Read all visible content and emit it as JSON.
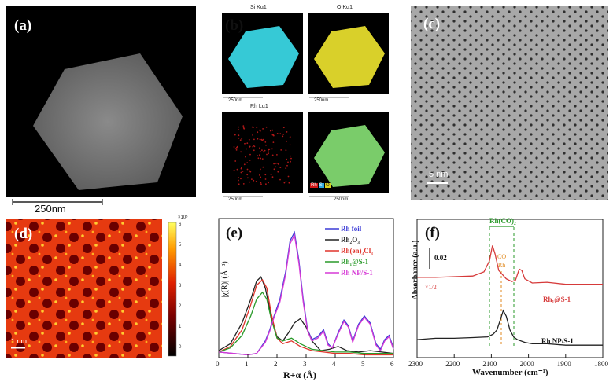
{
  "panels": {
    "a": {
      "label": "(a)",
      "scalebar": "250nm"
    },
    "b": {
      "label": "(b)",
      "maps": [
        {
          "title": "Si Kα1",
          "scale": "250nm",
          "color": "#36c9d6"
        },
        {
          "title": "O Kα1",
          "scale": "250nm",
          "color": "#d9d02a"
        },
        {
          "title": "Rh Lα1",
          "scale": "250nm",
          "color": "#b01818"
        },
        {
          "title": "",
          "scale": "250nm",
          "color": "#7acc6a"
        }
      ],
      "legend": [
        "Rh",
        "Si",
        "O"
      ],
      "legend_colors": [
        "#d01818",
        "#2ea8e0",
        "#d8d020"
      ]
    },
    "c": {
      "label": "(c)",
      "scalebar": "5 nm"
    },
    "d": {
      "label": "(d)",
      "scalebar": "1 nm",
      "colorbar_exp": "×10⁵",
      "colorbar_ticks": [
        "6",
        "5",
        "4",
        "3",
        "2",
        "1",
        "0"
      ]
    },
    "e": {
      "label": "(e)"
    },
    "f": {
      "label": "(f)"
    }
  },
  "chart_data": [
    {
      "type": "line",
      "panel": "e",
      "xlabel": "R+α (Å)",
      "ylabel": "|χ(R)| (Å⁻³)",
      "xlim": [
        0,
        6
      ],
      "ylim": [
        0,
        1
      ],
      "xticks": [
        "0",
        "1",
        "2",
        "3",
        "4",
        "5",
        "6"
      ],
      "legend": [
        {
          "name": "Rh foil",
          "color": "#3b3bd6"
        },
        {
          "name": "Rh₂O₃",
          "color": "#222222"
        },
        {
          "name": "Rh(en)₃Cl₃",
          "color": "#e0342c"
        },
        {
          "name": "Rh₁@S-1",
          "color": "#2a9a2a"
        },
        {
          "name": "Rh NP/S-1",
          "color": "#d63ad6"
        }
      ],
      "series": [
        {
          "name": "Rh foil",
          "x": [
            0,
            0.5,
            1.0,
            1.3,
            1.6,
            1.75,
            1.9,
            2.1,
            2.3,
            2.45,
            2.6,
            2.75,
            2.9,
            3.05,
            3.2,
            3.4,
            3.6,
            3.75,
            3.9,
            4.1,
            4.3,
            4.45,
            4.6,
            4.8,
            5.0,
            5.2,
            5.4,
            5.55,
            5.7,
            5.85,
            6.0
          ],
          "y": [
            0.04,
            0.03,
            0.02,
            0.03,
            0.12,
            0.2,
            0.3,
            0.42,
            0.62,
            0.84,
            0.9,
            0.7,
            0.42,
            0.2,
            0.13,
            0.15,
            0.2,
            0.1,
            0.07,
            0.18,
            0.27,
            0.23,
            0.12,
            0.24,
            0.3,
            0.25,
            0.1,
            0.06,
            0.13,
            0.16,
            0.07
          ]
        },
        {
          "name": "Rh₂O₃",
          "x": [
            0,
            0.4,
            0.8,
            1.1,
            1.3,
            1.45,
            1.6,
            1.8,
            2.0,
            2.2,
            2.4,
            2.6,
            2.8,
            3.0,
            3.2,
            3.5,
            3.8,
            4.1,
            4.4,
            4.8,
            5.2,
            5.6,
            6.0
          ],
          "y": [
            0.05,
            0.1,
            0.25,
            0.42,
            0.55,
            0.58,
            0.5,
            0.3,
            0.15,
            0.12,
            0.18,
            0.25,
            0.28,
            0.22,
            0.12,
            0.05,
            0.06,
            0.08,
            0.05,
            0.04,
            0.05,
            0.04,
            0.03
          ]
        },
        {
          "name": "Rh(en)₃Cl₃",
          "x": [
            0,
            0.4,
            0.8,
            1.1,
            1.3,
            1.5,
            1.65,
            1.8,
            2.0,
            2.2,
            2.5,
            2.8,
            3.2,
            3.6,
            4.0,
            4.5,
            5.0,
            5.5,
            6.0
          ],
          "y": [
            0.04,
            0.08,
            0.2,
            0.38,
            0.52,
            0.56,
            0.5,
            0.32,
            0.14,
            0.1,
            0.12,
            0.08,
            0.05,
            0.04,
            0.03,
            0.03,
            0.02,
            0.02,
            0.02
          ]
        },
        {
          "name": "Rh₁@S-1",
          "x": [
            0,
            0.4,
            0.8,
            1.1,
            1.3,
            1.5,
            1.65,
            1.8,
            2.0,
            2.2,
            2.5,
            2.8,
            3.2,
            3.6,
            4.0,
            4.5,
            5.0,
            5.5,
            6.0
          ],
          "y": [
            0.04,
            0.07,
            0.16,
            0.3,
            0.42,
            0.47,
            0.42,
            0.28,
            0.14,
            0.12,
            0.14,
            0.1,
            0.06,
            0.05,
            0.04,
            0.04,
            0.03,
            0.03,
            0.03
          ]
        },
        {
          "name": "Rh NP/S-1",
          "x": [
            0,
            0.5,
            1.0,
            1.3,
            1.6,
            1.75,
            1.9,
            2.1,
            2.3,
            2.45,
            2.6,
            2.75,
            2.9,
            3.05,
            3.2,
            3.4,
            3.6,
            3.75,
            3.9,
            4.1,
            4.3,
            4.45,
            4.6,
            4.8,
            5.0,
            5.2,
            5.4,
            5.55,
            5.7,
            5.85,
            6.0
          ],
          "y": [
            0.04,
            0.03,
            0.02,
            0.03,
            0.11,
            0.19,
            0.29,
            0.4,
            0.6,
            0.82,
            0.88,
            0.68,
            0.4,
            0.19,
            0.12,
            0.14,
            0.19,
            0.09,
            0.07,
            0.17,
            0.26,
            0.22,
            0.11,
            0.23,
            0.29,
            0.24,
            0.09,
            0.05,
            0.12,
            0.15,
            0.06
          ]
        }
      ]
    },
    {
      "type": "line",
      "panel": "f",
      "xlabel": "Wavenumber (cm⁻¹)",
      "ylabel": "Absorbance (a.u.)",
      "xlim": [
        2300,
        1800
      ],
      "xticks": [
        "2300",
        "2200",
        "2100",
        "2000",
        "1900",
        "1800"
      ],
      "scale_label": "0.02",
      "multiplier": "×1/2",
      "annotations": {
        "rh_co2": "Rh(CO)₂",
        "co_rh": [
          "CO",
          "Rh"
        ]
      },
      "series": [
        {
          "name": "Rh₁@S-1",
          "color": "#d63a3a",
          "x": [
            2300,
            2250,
            2200,
            2150,
            2120,
            2105,
            2097,
            2090,
            2080,
            2070,
            2060,
            2045,
            2035,
            2025,
            2018,
            2010,
            1990,
            1950,
            1900,
            1850,
            1800
          ],
          "y": [
            0.58,
            0.58,
            0.585,
            0.59,
            0.62,
            0.7,
            0.81,
            0.75,
            0.63,
            0.6,
            0.57,
            0.55,
            0.56,
            0.64,
            0.63,
            0.57,
            0.54,
            0.545,
            0.53,
            0.53,
            0.53
          ]
        },
        {
          "name": "Rh NP/S-1",
          "color": "#222222",
          "x": [
            2300,
            2250,
            2200,
            2150,
            2110,
            2095,
            2085,
            2075,
            2068,
            2060,
            2050,
            2040,
            2030,
            2010,
            1990,
            1950,
            1900,
            1850,
            1800
          ],
          "y": [
            0.13,
            0.14,
            0.14,
            0.145,
            0.15,
            0.17,
            0.2,
            0.28,
            0.34,
            0.3,
            0.2,
            0.15,
            0.13,
            0.11,
            0.1,
            0.1,
            0.09,
            0.09,
            0.09
          ]
        }
      ],
      "series_labels": [
        "Rh₁@S-1",
        "Rh NP/S-1"
      ]
    }
  ]
}
